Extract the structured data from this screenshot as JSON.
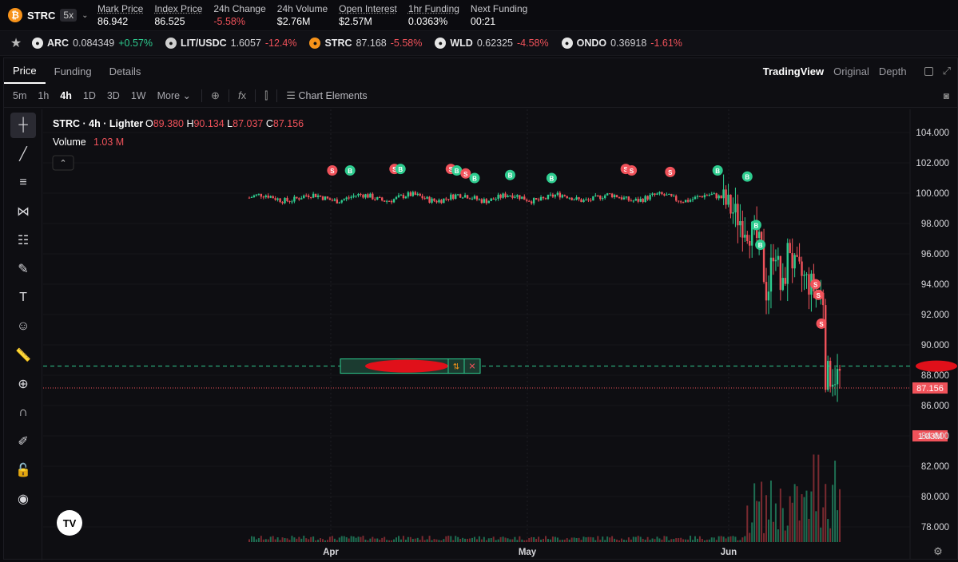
{
  "header": {
    "pair": "STRC",
    "leverage": "5x",
    "stats": [
      {
        "k": "Mark Price",
        "v": "86.942",
        "u": true
      },
      {
        "k": "Index Price",
        "v": "86.525",
        "u": true
      },
      {
        "k": "24h Change",
        "v": "-5.58%",
        "neg": true
      },
      {
        "k": "24h Volume",
        "v": "$2.76M"
      },
      {
        "k": "Open Interest",
        "v": "$2.57M",
        "u": true
      },
      {
        "k": "1hr Funding",
        "v": "0.0363%",
        "u": true
      },
      {
        "k": "Next Funding",
        "v": "00:21"
      }
    ]
  },
  "ticker": [
    {
      "sym": "ARC",
      "px": "0.084349",
      "chg": "+0.57%",
      "pos": true,
      "color": "#e6e6e6"
    },
    {
      "sym": "LIT/USDC",
      "px": "1.6057",
      "chg": "-12.4%",
      "pos": false,
      "color": "#cfcfcf"
    },
    {
      "sym": "STRC",
      "px": "87.168",
      "chg": "-5.58%",
      "pos": false,
      "color": "#f7931a"
    },
    {
      "sym": "WLD",
      "px": "0.62325",
      "chg": "-4.58%",
      "pos": false,
      "color": "#e6e6e6"
    },
    {
      "sym": "ONDO",
      "px": "0.36918",
      "chg": "-1.61%",
      "pos": false,
      "color": "#e6e6e6"
    }
  ],
  "tabs": [
    "Price",
    "Funding",
    "Details"
  ],
  "view_tabs": [
    "TradingView",
    "Original",
    "Depth"
  ],
  "timeframes": [
    "5m",
    "1h",
    "4h",
    "1D",
    "3D",
    "1W",
    "More"
  ],
  "chart_elements_label": "Chart Elements",
  "legend": {
    "title": "STRC · 4h · Lighter",
    "o": "89.380",
    "h": "90.134",
    "l": "87.037",
    "c": "87.156",
    "vol_label": "Volume",
    "vol": "1.03 M"
  },
  "chart_data": {
    "type": "candlestick",
    "y_ticks": [
      "104.000",
      "102.000",
      "100.000",
      "98.000",
      "96.000",
      "94.000",
      "92.000",
      "90.000",
      "88.000",
      "86.000",
      "84.000",
      "82.000",
      "80.000",
      "78.000"
    ],
    "ylim": [
      77,
      105
    ],
    "x_ticks": [
      "Apr",
      "May",
      "Jun"
    ],
    "last_price": "87.156",
    "volume_label": "1.03M",
    "position_line": 88.6,
    "markers": [
      {
        "t": "S",
        "price": 101.5,
        "slot": 0.14
      },
      {
        "t": "B",
        "price": 101.5,
        "slot": 0.17
      },
      {
        "t": "S",
        "price": 101.6,
        "slot": 0.245
      },
      {
        "t": "B",
        "price": 101.6,
        "slot": 0.255
      },
      {
        "t": "S",
        "price": 101.6,
        "slot": 0.34
      },
      {
        "t": "B",
        "price": 101.5,
        "slot": 0.35
      },
      {
        "t": "S",
        "price": 101.3,
        "slot": 0.365
      },
      {
        "t": "B",
        "price": 101.0,
        "slot": 0.38
      },
      {
        "t": "B",
        "price": 101.2,
        "slot": 0.44
      },
      {
        "t": "B",
        "price": 101.0,
        "slot": 0.51
      },
      {
        "t": "S",
        "price": 101.6,
        "slot": 0.635
      },
      {
        "t": "S",
        "price": 101.5,
        "slot": 0.645
      },
      {
        "t": "S",
        "price": 101.4,
        "slot": 0.71
      },
      {
        "t": "B",
        "price": 101.5,
        "slot": 0.79
      },
      {
        "t": "B",
        "price": 101.1,
        "slot": 0.84
      },
      {
        "t": "B",
        "price": 97.9,
        "slot": 0.855
      },
      {
        "t": "B",
        "price": 96.6,
        "slot": 0.862
      },
      {
        "t": "S",
        "price": 94.0,
        "slot": 0.955
      },
      {
        "t": "S",
        "price": 93.3,
        "slot": 0.96
      },
      {
        "t": "S",
        "price": 91.4,
        "slot": 0.965
      }
    ]
  }
}
